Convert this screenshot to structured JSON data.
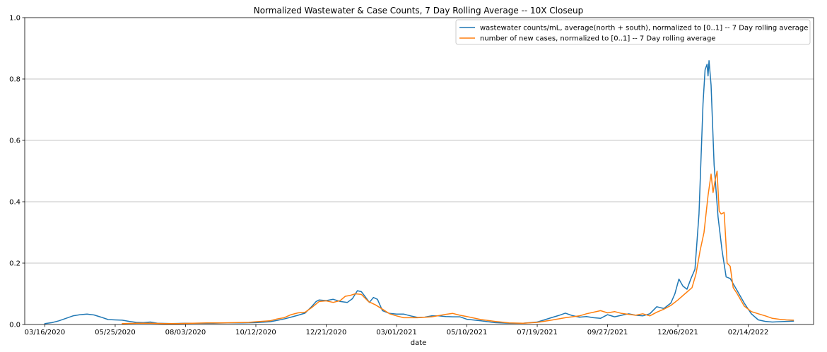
{
  "chart_data": {
    "type": "line",
    "title": "Normalized Wastewater & Case Counts, 7 Day Rolling Average -- 10X Closeup",
    "xlabel": "date",
    "ylabel": "",
    "ylim": [
      0,
      1.0
    ],
    "yticks": [
      0.0,
      0.2,
      0.4,
      0.6,
      0.8,
      1.0
    ],
    "ytick_labels": [
      "0.0",
      "0.2",
      "0.4",
      "0.6",
      "0.8",
      "1.0"
    ],
    "xlim": [
      "2020-02-25",
      "2022-04-20"
    ],
    "xticks": [
      "2020-03-16",
      "2020-05-25",
      "2020-08-03",
      "2020-10-12",
      "2020-12-21",
      "2021-03-01",
      "2021-05-10",
      "2021-07-19",
      "2021-09-27",
      "2021-12-06",
      "2022-02-14"
    ],
    "xtick_labels": [
      "03/16/2020",
      "05/25/2020",
      "08/03/2020",
      "10/12/2020",
      "12/21/2020",
      "03/01/2021",
      "05/10/2021",
      "07/19/2021",
      "09/27/2021",
      "12/06/2021",
      "02/14/2022"
    ],
    "grid": "y",
    "legend_position": "top-right",
    "series": [
      {
        "name": "wastewater counts/mL, average(north + south), normalized to [0..1] -- 7 Day rolling average",
        "color": "#1f77b4",
        "points": [
          [
            "2020-03-16",
            0.003
          ],
          [
            "2020-03-23",
            0.006
          ],
          [
            "2020-03-30",
            0.012
          ],
          [
            "2020-04-06",
            0.02
          ],
          [
            "2020-04-13",
            0.028
          ],
          [
            "2020-04-20",
            0.032
          ],
          [
            "2020-04-27",
            0.034
          ],
          [
            "2020-05-04",
            0.031
          ],
          [
            "2020-05-11",
            0.024
          ],
          [
            "2020-05-18",
            0.016
          ],
          [
            "2020-05-25",
            0.015
          ],
          [
            "2020-06-01",
            0.014
          ],
          [
            "2020-06-08",
            0.01
          ],
          [
            "2020-06-15",
            0.007
          ],
          [
            "2020-06-22",
            0.006
          ],
          [
            "2020-06-29",
            0.008
          ],
          [
            "2020-07-06",
            0.004
          ],
          [
            "2020-07-20",
            0.003
          ],
          [
            "2020-08-03",
            0.004
          ],
          [
            "2020-08-17",
            0.004
          ],
          [
            "2020-08-31",
            0.004
          ],
          [
            "2020-09-14",
            0.005
          ],
          [
            "2020-09-28",
            0.005
          ],
          [
            "2020-10-12",
            0.006
          ],
          [
            "2020-10-26",
            0.009
          ],
          [
            "2020-11-02",
            0.013
          ],
          [
            "2020-11-09",
            0.018
          ],
          [
            "2020-11-16",
            0.024
          ],
          [
            "2020-11-23",
            0.03
          ],
          [
            "2020-11-30",
            0.037
          ],
          [
            "2020-12-07",
            0.06
          ],
          [
            "2020-12-11",
            0.075
          ],
          [
            "2020-12-14",
            0.08
          ],
          [
            "2020-12-21",
            0.078
          ],
          [
            "2020-12-28",
            0.082
          ],
          [
            "2021-01-04",
            0.075
          ],
          [
            "2021-01-11",
            0.072
          ],
          [
            "2021-01-16",
            0.084
          ],
          [
            "2021-01-21",
            0.11
          ],
          [
            "2021-01-25",
            0.107
          ],
          [
            "2021-01-29",
            0.09
          ],
          [
            "2021-02-02",
            0.072
          ],
          [
            "2021-02-06",
            0.088
          ],
          [
            "2021-02-10",
            0.082
          ],
          [
            "2021-02-15",
            0.045
          ],
          [
            "2021-02-22",
            0.036
          ],
          [
            "2021-03-01",
            0.034
          ],
          [
            "2021-03-08",
            0.034
          ],
          [
            "2021-03-15",
            0.028
          ],
          [
            "2021-03-22",
            0.023
          ],
          [
            "2021-03-29",
            0.024
          ],
          [
            "2021-04-05",
            0.028
          ],
          [
            "2021-04-12",
            0.028
          ],
          [
            "2021-04-19",
            0.026
          ],
          [
            "2021-04-26",
            0.025
          ],
          [
            "2021-05-03",
            0.025
          ],
          [
            "2021-05-10",
            0.017
          ],
          [
            "2021-05-24",
            0.012
          ],
          [
            "2021-06-07",
            0.006
          ],
          [
            "2021-06-21",
            0.004
          ],
          [
            "2021-07-05",
            0.004
          ],
          [
            "2021-07-19",
            0.008
          ],
          [
            "2021-07-26",
            0.015
          ],
          [
            "2021-08-02",
            0.022
          ],
          [
            "2021-08-09",
            0.029
          ],
          [
            "2021-08-16",
            0.037
          ],
          [
            "2021-08-23",
            0.029
          ],
          [
            "2021-08-30",
            0.024
          ],
          [
            "2021-09-06",
            0.026
          ],
          [
            "2021-09-13",
            0.022
          ],
          [
            "2021-09-20",
            0.02
          ],
          [
            "2021-09-27",
            0.032
          ],
          [
            "2021-10-04",
            0.025
          ],
          [
            "2021-10-11",
            0.03
          ],
          [
            "2021-10-18",
            0.035
          ],
          [
            "2021-10-25",
            0.03
          ],
          [
            "2021-11-01",
            0.028
          ],
          [
            "2021-11-08",
            0.035
          ],
          [
            "2021-11-15",
            0.058
          ],
          [
            "2021-11-22",
            0.052
          ],
          [
            "2021-11-29",
            0.07
          ],
          [
            "2021-12-03",
            0.1
          ],
          [
            "2021-12-07",
            0.148
          ],
          [
            "2021-12-11",
            0.125
          ],
          [
            "2021-12-15",
            0.115
          ],
          [
            "2021-12-19",
            0.15
          ],
          [
            "2021-12-23",
            0.18
          ],
          [
            "2021-12-27",
            0.36
          ],
          [
            "2021-12-31",
            0.72
          ],
          [
            "2022-01-02",
            0.83
          ],
          [
            "2022-01-04",
            0.848
          ],
          [
            "2022-01-05",
            0.81
          ],
          [
            "2022-01-06",
            0.86
          ],
          [
            "2022-01-08",
            0.78
          ],
          [
            "2022-01-11",
            0.52
          ],
          [
            "2022-01-15",
            0.35
          ],
          [
            "2022-01-19",
            0.24
          ],
          [
            "2022-01-23",
            0.155
          ],
          [
            "2022-01-27",
            0.15
          ],
          [
            "2022-02-03",
            0.11
          ],
          [
            "2022-02-10",
            0.07
          ],
          [
            "2022-02-17",
            0.035
          ],
          [
            "2022-02-24",
            0.015
          ],
          [
            "2022-03-03",
            0.01
          ],
          [
            "2022-03-10",
            0.008
          ],
          [
            "2022-03-24",
            0.01
          ],
          [
            "2022-03-31",
            0.011
          ]
        ]
      },
      {
        "name": "number of new cases, normalized to [0..1] -- 7 Day rolling average",
        "color": "#ff7f0e",
        "points": [
          [
            "2020-06-01",
            0.003
          ],
          [
            "2020-06-15",
            0.004
          ],
          [
            "2020-06-29",
            0.004
          ],
          [
            "2020-07-13",
            0.003
          ],
          [
            "2020-07-27",
            0.003
          ],
          [
            "2020-08-10",
            0.004
          ],
          [
            "2020-08-24",
            0.005
          ],
          [
            "2020-09-07",
            0.005
          ],
          [
            "2020-09-21",
            0.006
          ],
          [
            "2020-10-05",
            0.007
          ],
          [
            "2020-10-12",
            0.009
          ],
          [
            "2020-10-26",
            0.012
          ],
          [
            "2020-11-02",
            0.018
          ],
          [
            "2020-11-09",
            0.022
          ],
          [
            "2020-11-16",
            0.032
          ],
          [
            "2020-11-23",
            0.038
          ],
          [
            "2020-11-30",
            0.04
          ],
          [
            "2020-12-07",
            0.056
          ],
          [
            "2020-12-14",
            0.075
          ],
          [
            "2020-12-21",
            0.077
          ],
          [
            "2020-12-28",
            0.072
          ],
          [
            "2021-01-04",
            0.078
          ],
          [
            "2021-01-09",
            0.092
          ],
          [
            "2021-01-14",
            0.095
          ],
          [
            "2021-01-19",
            0.1
          ],
          [
            "2021-01-25",
            0.098
          ],
          [
            "2021-02-01",
            0.075
          ],
          [
            "2021-02-08",
            0.064
          ],
          [
            "2021-02-15",
            0.05
          ],
          [
            "2021-02-22",
            0.035
          ],
          [
            "2021-03-01",
            0.028
          ],
          [
            "2021-03-08",
            0.022
          ],
          [
            "2021-03-22",
            0.022
          ],
          [
            "2021-04-05",
            0.025
          ],
          [
            "2021-04-19",
            0.033
          ],
          [
            "2021-04-26",
            0.036
          ],
          [
            "2021-05-03",
            0.03
          ],
          [
            "2021-05-10",
            0.026
          ],
          [
            "2021-05-24",
            0.016
          ],
          [
            "2021-06-07",
            0.01
          ],
          [
            "2021-06-21",
            0.005
          ],
          [
            "2021-07-05",
            0.004
          ],
          [
            "2021-07-19",
            0.007
          ],
          [
            "2021-08-02",
            0.014
          ],
          [
            "2021-08-16",
            0.022
          ],
          [
            "2021-08-30",
            0.028
          ],
          [
            "2021-09-06",
            0.035
          ],
          [
            "2021-09-13",
            0.04
          ],
          [
            "2021-09-20",
            0.045
          ],
          [
            "2021-09-27",
            0.038
          ],
          [
            "2021-10-04",
            0.042
          ],
          [
            "2021-10-11",
            0.036
          ],
          [
            "2021-10-18",
            0.033
          ],
          [
            "2021-10-25",
            0.03
          ],
          [
            "2021-11-01",
            0.035
          ],
          [
            "2021-11-08",
            0.028
          ],
          [
            "2021-11-15",
            0.04
          ],
          [
            "2021-11-22",
            0.05
          ],
          [
            "2021-11-29",
            0.062
          ],
          [
            "2021-12-06",
            0.08
          ],
          [
            "2021-12-13",
            0.1
          ],
          [
            "2021-12-20",
            0.12
          ],
          [
            "2021-12-24",
            0.165
          ],
          [
            "2021-12-28",
            0.24
          ],
          [
            "2022-01-01",
            0.3
          ],
          [
            "2022-01-05",
            0.42
          ],
          [
            "2022-01-08",
            0.49
          ],
          [
            "2022-01-10",
            0.43
          ],
          [
            "2022-01-12",
            0.47
          ],
          [
            "2022-01-14",
            0.5
          ],
          [
            "2022-01-16",
            0.37
          ],
          [
            "2022-01-18",
            0.36
          ],
          [
            "2022-01-21",
            0.365
          ],
          [
            "2022-01-24",
            0.2
          ],
          [
            "2022-01-27",
            0.19
          ],
          [
            "2022-01-30",
            0.12
          ],
          [
            "2022-02-03",
            0.1
          ],
          [
            "2022-02-10",
            0.06
          ],
          [
            "2022-02-17",
            0.042
          ],
          [
            "2022-02-24",
            0.035
          ],
          [
            "2022-03-03",
            0.028
          ],
          [
            "2022-03-10",
            0.02
          ],
          [
            "2022-03-17",
            0.017
          ],
          [
            "2022-03-24",
            0.015
          ],
          [
            "2022-03-31",
            0.014
          ]
        ]
      }
    ]
  }
}
